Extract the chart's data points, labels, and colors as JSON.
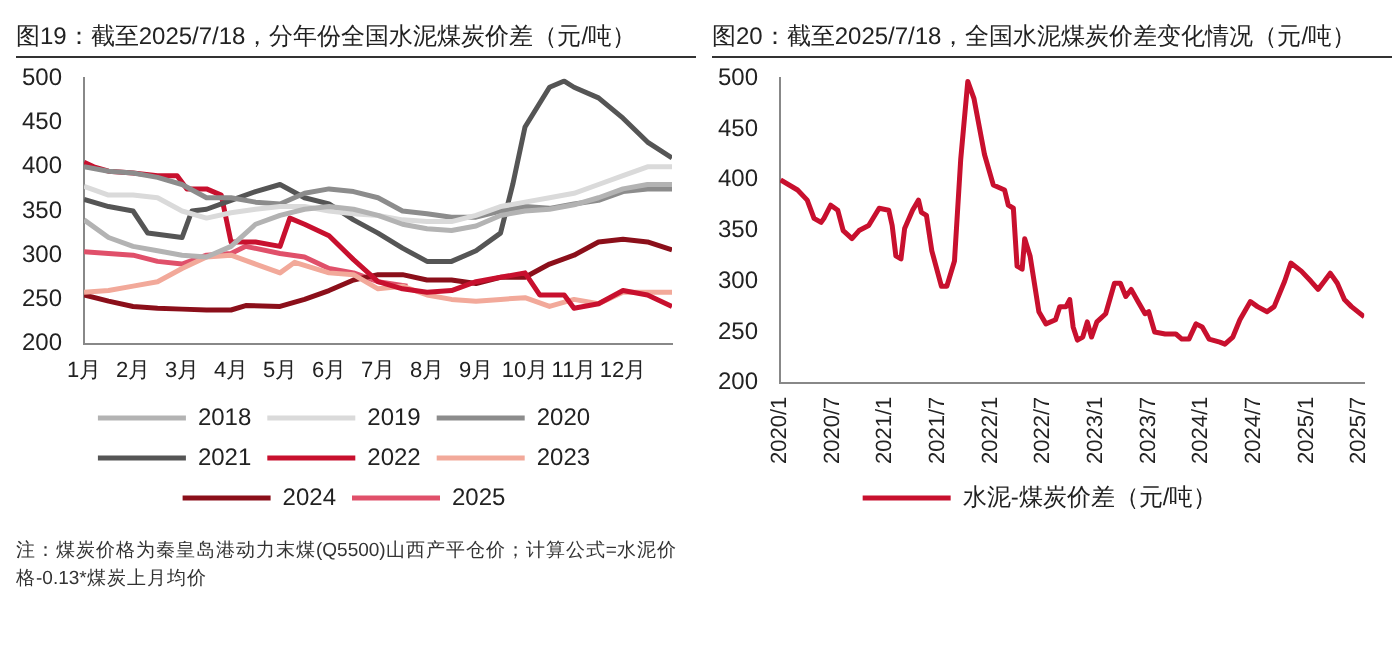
{
  "chart_data": [
    {
      "type": "line",
      "title": "图19：截至2025/7/18，分年份全国水泥煤炭价差（元/吨）",
      "xlim": [
        1,
        13
      ],
      "xticks": [
        {
          "value": 1,
          "label": "1月"
        },
        {
          "value": 2,
          "label": "2月"
        },
        {
          "value": 3,
          "label": "3月"
        },
        {
          "value": 4,
          "label": "4月"
        },
        {
          "value": 5,
          "label": "5月"
        },
        {
          "value": 6,
          "label": "6月"
        },
        {
          "value": 7,
          "label": "7月"
        },
        {
          "value": 8,
          "label": "8月"
        },
        {
          "value": 9,
          "label": "9月"
        },
        {
          "value": 10,
          "label": "10月"
        },
        {
          "value": 11,
          "label": "11月"
        },
        {
          "value": 12,
          "label": "12月"
        }
      ],
      "ylim": [
        200,
        500
      ],
      "yticks": [
        200,
        250,
        300,
        350,
        400,
        450,
        500
      ],
      "grid": false,
      "legend": "bottom",
      "series": [
        {
          "name": "2018",
          "color": "#b3b3b3",
          "x": [
            1,
            1.5,
            2,
            2.5,
            3,
            3.5,
            4,
            4.5,
            5,
            5.5,
            6,
            6.5,
            7,
            7.5,
            8,
            8.5,
            9,
            9.5,
            10,
            10.5,
            11,
            11.5,
            12,
            12.5,
            13
          ],
          "values": [
            340,
            320,
            310,
            305,
            300,
            298,
            310,
            335,
            345,
            352,
            355,
            352,
            345,
            335,
            330,
            328,
            333,
            345,
            350,
            352,
            357,
            365,
            375,
            380,
            380
          ]
        },
        {
          "name": "2019",
          "color": "#dadada",
          "x": [
            1,
            1.5,
            2,
            2.5,
            3,
            3.5,
            4,
            4.5,
            5,
            5.5,
            6,
            6.5,
            7,
            7.5,
            8,
            8.5,
            9,
            9.5,
            10,
            10.5,
            11,
            11.5,
            12,
            12.5,
            13
          ],
          "values": [
            378,
            368,
            368,
            365,
            350,
            342,
            348,
            352,
            355,
            355,
            350,
            347,
            345,
            340,
            338,
            338,
            345,
            355,
            360,
            365,
            370,
            380,
            390,
            400,
            400
          ]
        },
        {
          "name": "2020",
          "color": "#8c8c8c",
          "x": [
            1,
            1.5,
            2,
            2.5,
            3,
            3.5,
            4,
            4.5,
            5,
            5.5,
            6,
            6.5,
            7,
            7.5,
            8,
            8.5,
            9,
            9.5,
            10,
            10.5,
            11,
            11.5,
            12,
            12.5,
            13
          ],
          "values": [
            400,
            395,
            393,
            388,
            380,
            365,
            365,
            360,
            358,
            370,
            375,
            372,
            365,
            350,
            347,
            343,
            343,
            350,
            355,
            353,
            358,
            362,
            372,
            375,
            375
          ]
        },
        {
          "name": "2021",
          "color": "#555555",
          "x": [
            1,
            1.5,
            2,
            2.3,
            3,
            3.2,
            3.5,
            4,
            4.5,
            5,
            5.5,
            6,
            6.5,
            7,
            7.5,
            8,
            8.5,
            9,
            9.5,
            9.75,
            10,
            10.5,
            10.8,
            11,
            11.5,
            12,
            12.5,
            13
          ],
          "values": [
            363,
            355,
            350,
            325,
            320,
            350,
            352,
            362,
            372,
            380,
            365,
            358,
            340,
            325,
            308,
            293,
            293,
            305,
            325,
            380,
            445,
            490,
            497,
            490,
            478,
            455,
            428,
            410
          ]
        },
        {
          "name": "2022",
          "color": "#c8102e",
          "x": [
            1,
            1.2,
            1.5,
            2,
            2.5,
            2.9,
            3.1,
            3.5,
            3.8,
            4,
            4.5,
            5,
            5.2,
            5.5,
            6,
            6.5,
            7,
            7.5,
            8,
            8.5,
            9,
            9.5,
            10,
            10.3,
            10.8,
            11,
            11.5,
            12,
            12.5,
            13
          ],
          "values": [
            405,
            400,
            395,
            393,
            390,
            390,
            375,
            375,
            368,
            315,
            315,
            310,
            342,
            335,
            322,
            295,
            270,
            262,
            258,
            260,
            270,
            275,
            280,
            255,
            255,
            240,
            245,
            260,
            255,
            242
          ]
        },
        {
          "name": "2023",
          "color": "#f2a99a",
          "x": [
            1,
            1.5,
            2,
            2.5,
            3,
            3.5,
            4,
            4.5,
            5,
            5.3,
            6,
            6.5,
            7,
            7.5,
            8,
            8.5,
            9,
            9.5,
            10,
            10.5,
            11,
            11.5,
            12,
            12.5,
            13
          ],
          "values": [
            258,
            260,
            265,
            270,
            285,
            298,
            300,
            290,
            280,
            292,
            280,
            278,
            262,
            265,
            255,
            250,
            248,
            250,
            252,
            242,
            250,
            245,
            258,
            258,
            258
          ]
        },
        {
          "name": "2024",
          "color": "#8b0f1a",
          "x": [
            1,
            1.5,
            2,
            2.5,
            3,
            3.5,
            4,
            4.3,
            5,
            5.5,
            6,
            6.5,
            7,
            7.5,
            8,
            8.5,
            9,
            9.5,
            10,
            10.5,
            11,
            11.5,
            12,
            12.5,
            13
          ],
          "values": [
            255,
            248,
            242,
            240,
            239,
            238,
            238,
            243,
            242,
            250,
            260,
            272,
            278,
            278,
            272,
            272,
            268,
            275,
            275,
            290,
            300,
            315,
            318,
            315,
            306
          ]
        },
        {
          "name": "2025",
          "color": "#e0506a",
          "x": [
            1,
            1.5,
            2,
            2.5,
            3,
            3.5,
            4,
            4.3,
            5,
            5.5,
            6,
            6.5,
            7,
            7.6
          ],
          "values": [
            304,
            302,
            300,
            293,
            290,
            300,
            302,
            310,
            302,
            298,
            285,
            280,
            270,
            265
          ]
        }
      ],
      "annotations": [
        "注：煤炭价格为秦皇岛港动力末煤(Q5500)山西产平仓价；计算公式=水泥价格-0.13*煤炭上月均价"
      ]
    },
    {
      "type": "line",
      "title": "图20：截至2025/7/18，全国水泥煤炭价差变化情况（元/吨）",
      "xlim": [
        "2020-01-01",
        "2025-07-18"
      ],
      "xticks": [
        {
          "value": "2020-01-01",
          "label": "2020/1"
        },
        {
          "value": "2020-07-01",
          "label": "2020/7"
        },
        {
          "value": "2021-01-01",
          "label": "2021/1"
        },
        {
          "value": "2021-07-01",
          "label": "2021/7"
        },
        {
          "value": "2022-01-01",
          "label": "2022/1"
        },
        {
          "value": "2022-07-01",
          "label": "2022/7"
        },
        {
          "value": "2023-01-01",
          "label": "2023/1"
        },
        {
          "value": "2023-07-01",
          "label": "2023/7"
        },
        {
          "value": "2024-01-01",
          "label": "2024/1"
        },
        {
          "value": "2024-07-01",
          "label": "2024/7"
        },
        {
          "value": "2025-01-01",
          "label": "2025/1"
        },
        {
          "value": "2025-07-01",
          "label": "2025/7"
        }
      ],
      "ylim": [
        200,
        500
      ],
      "yticks": [
        200,
        250,
        300,
        350,
        400,
        450,
        500
      ],
      "grid": false,
      "legend": "bottom",
      "series": [
        {
          "name": "水泥-煤炭价差（元/吨）",
          "color": "#c8102e",
          "x": [
            "2020-01-03",
            "2020-03-01",
            "2020-04-04",
            "2020-04-28",
            "2020-05-22",
            "2020-06-01",
            "2020-06-25",
            "2020-07-19",
            "2020-08-07",
            "2020-09-07",
            "2020-10-01",
            "2020-11-04",
            "2020-12-10",
            "2021-01-13",
            "2021-01-25",
            "2021-02-07",
            "2021-02-25",
            "2021-03-07",
            "2021-04-04",
            "2021-04-25",
            "2021-05-04",
            "2021-05-22",
            "2021-06-10",
            "2021-07-13",
            "2021-08-01",
            "2021-08-28",
            "2021-09-19",
            "2021-10-13",
            "2021-11-04",
            "2021-12-10",
            "2022-01-10",
            "2022-02-19",
            "2022-03-01",
            "2022-03-19",
            "2022-04-01",
            "2022-04-19",
            "2022-04-28",
            "2022-05-16",
            "2022-06-16",
            "2022-07-10",
            "2022-08-13",
            "2022-08-28",
            "2022-09-19",
            "2022-10-01",
            "2022-10-13",
            "2022-10-28",
            "2022-11-16",
            "2022-12-01",
            "2022-12-16",
            "2023-01-04",
            "2023-02-04",
            "2023-03-04",
            "2023-03-25",
            "2023-04-13",
            "2023-05-01",
            "2023-05-25",
            "2023-06-19",
            "2023-07-01",
            "2023-07-22",
            "2023-08-28",
            "2023-10-04",
            "2023-10-25",
            "2023-11-19",
            "2023-12-13",
            "2024-01-04",
            "2024-01-28",
            "2024-03-04",
            "2024-03-22",
            "2024-04-19",
            "2024-05-13",
            "2024-06-19",
            "2024-07-13",
            "2024-08-16",
            "2024-09-10",
            "2024-10-16",
            "2024-11-07",
            "2024-12-13",
            "2025-01-16",
            "2025-02-10",
            "2025-03-01",
            "2025-03-22",
            "2025-04-16",
            "2025-05-10",
            "2025-06-04",
            "2025-07-18"
          ],
          "values": [
            400,
            390,
            380,
            362,
            358,
            362,
            375,
            370,
            350,
            342,
            350,
            355,
            372,
            370,
            355,
            325,
            322,
            352,
            370,
            380,
            368,
            365,
            330,
            295,
            295,
            320,
            420,
            497,
            480,
            425,
            395,
            390,
            375,
            372,
            315,
            312,
            342,
            325,
            270,
            258,
            262,
            275,
            275,
            282,
            255,
            242,
            245,
            260,
            245,
            260,
            268,
            298,
            298,
            285,
            292,
            280,
            268,
            270,
            250,
            248,
            248,
            243,
            243,
            258,
            255,
            243,
            240,
            238,
            245,
            262,
            280,
            275,
            270,
            275,
            300,
            318,
            310,
            300,
            292,
            300,
            308,
            298,
            282,
            275,
            265
          ]
        }
      ]
    }
  ]
}
